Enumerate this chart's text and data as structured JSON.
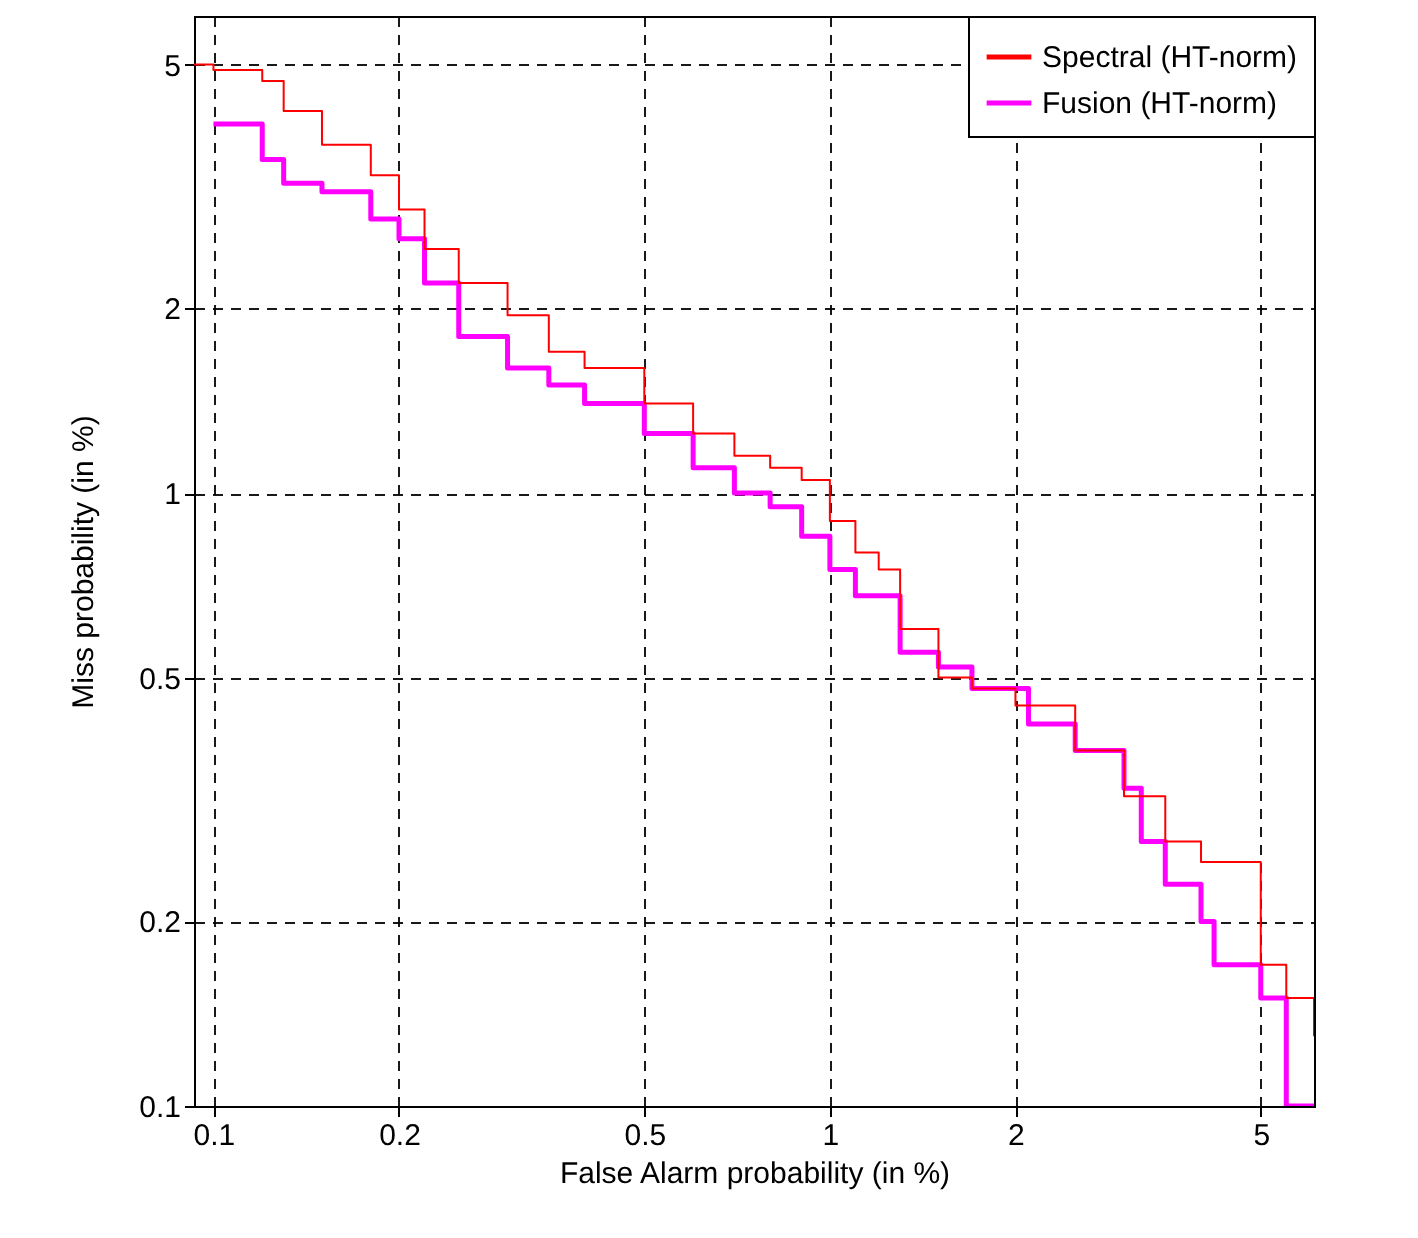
{
  "chart_data": {
    "type": "step",
    "xlabel": "False Alarm probability (in %)",
    "ylabel": "Miss probability (in %)",
    "xlim": [
      0.093,
      6.1
    ],
    "ylim": [
      0.1,
      6
    ],
    "xticks": [
      0.1,
      0.2,
      0.5,
      1,
      2,
      5
    ],
    "yticks": [
      0.1,
      0.2,
      0.5,
      1,
      2,
      5
    ],
    "log": "xy",
    "grid": true,
    "legend": "top right",
    "line_style": "solid",
    "marker": "none",
    "series": [
      {
        "name": "Spectral (HT-norm)",
        "color": "#ff0000",
        "x": [
          0.093,
          0.1,
          0.12,
          0.13,
          0.15,
          0.18,
          0.2,
          0.22,
          0.25,
          0.3,
          0.35,
          0.4,
          0.5,
          0.6,
          0.7,
          0.8,
          0.9,
          1.0,
          1.1,
          1.2,
          1.3,
          1.5,
          1.7,
          2,
          2.5,
          3,
          3.5,
          4,
          5,
          5.5,
          6.1
        ],
        "values": [
          5.0,
          4.9,
          4.7,
          4.2,
          3.7,
          3.3,
          2.9,
          2.5,
          2.2,
          1.95,
          1.7,
          1.6,
          1.4,
          1.25,
          1.15,
          1.1,
          1.05,
          0.9,
          0.8,
          0.75,
          0.6,
          0.5,
          0.48,
          0.45,
          0.38,
          0.32,
          0.27,
          0.25,
          0.17,
          0.15,
          0.13
        ]
      },
      {
        "name": "Fusion (HT-norm)",
        "color": "#ff00ff",
        "x": [
          0.1,
          0.12,
          0.13,
          0.15,
          0.18,
          0.2,
          0.22,
          0.25,
          0.3,
          0.35,
          0.4,
          0.5,
          0.6,
          0.7,
          0.8,
          0.9,
          1.0,
          1.1,
          1.2,
          1.3,
          1.5,
          1.7,
          2.0,
          2.1,
          2.5,
          3.0,
          3.2,
          3.5,
          4,
          4.2,
          5,
          5.5,
          6.1
        ],
        "values": [
          4.0,
          3.5,
          3.2,
          3.1,
          2.8,
          2.6,
          2.2,
          1.8,
          1.6,
          1.5,
          1.4,
          1.25,
          1.1,
          1.0,
          0.95,
          0.85,
          0.75,
          0.68,
          0.68,
          0.55,
          0.52,
          0.48,
          0.48,
          0.42,
          0.38,
          0.33,
          0.27,
          0.23,
          0.2,
          0.17,
          0.15,
          0.1,
          0.1
        ]
      }
    ]
  }
}
